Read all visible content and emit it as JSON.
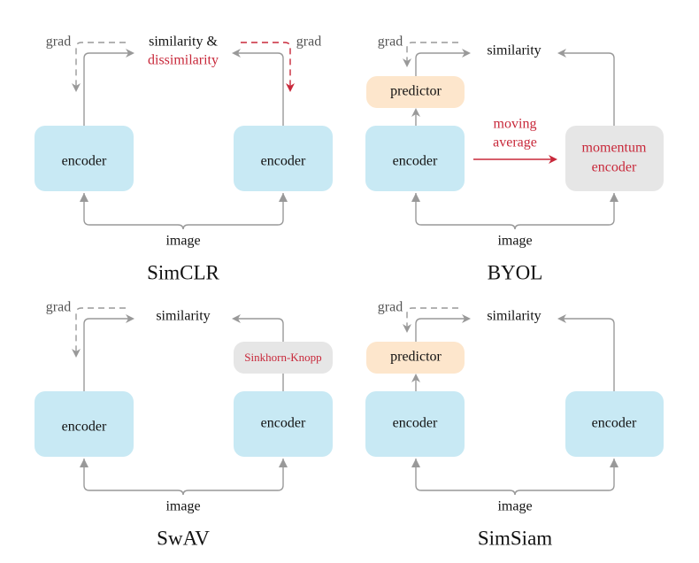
{
  "colors": {
    "encoder": "#c8e9f4",
    "predictor": "#fde6cc",
    "momentum": "#e6e6e6",
    "accent_red": "#c8283a",
    "arrow": "#999999"
  },
  "panels": {
    "simclr": {
      "title": "SimCLR",
      "similarity": "similarity &",
      "dissimilarity": "dissimilarity",
      "grad_left": "grad",
      "grad_right": "grad",
      "encoder_left": "encoder",
      "encoder_right": "encoder",
      "image": "image"
    },
    "byol": {
      "title": "BYOL",
      "similarity": "similarity",
      "grad": "grad",
      "predictor": "predictor",
      "encoder": "encoder",
      "moving_1": "moving",
      "moving_2": "average",
      "momentum_1": "momentum",
      "momentum_2": "encoder",
      "image": "image"
    },
    "swav": {
      "title": "SwAV",
      "similarity": "similarity",
      "grad": "grad",
      "sinkhorn": "Sinkhorn-Knopp",
      "encoder_left": "encoder",
      "encoder_right": "encoder",
      "image": "image"
    },
    "simsiam": {
      "title": "SimSiam",
      "similarity": "similarity",
      "grad": "grad",
      "predictor": "predictor",
      "encoder_left": "encoder",
      "encoder_right": "encoder",
      "image": "image"
    }
  }
}
